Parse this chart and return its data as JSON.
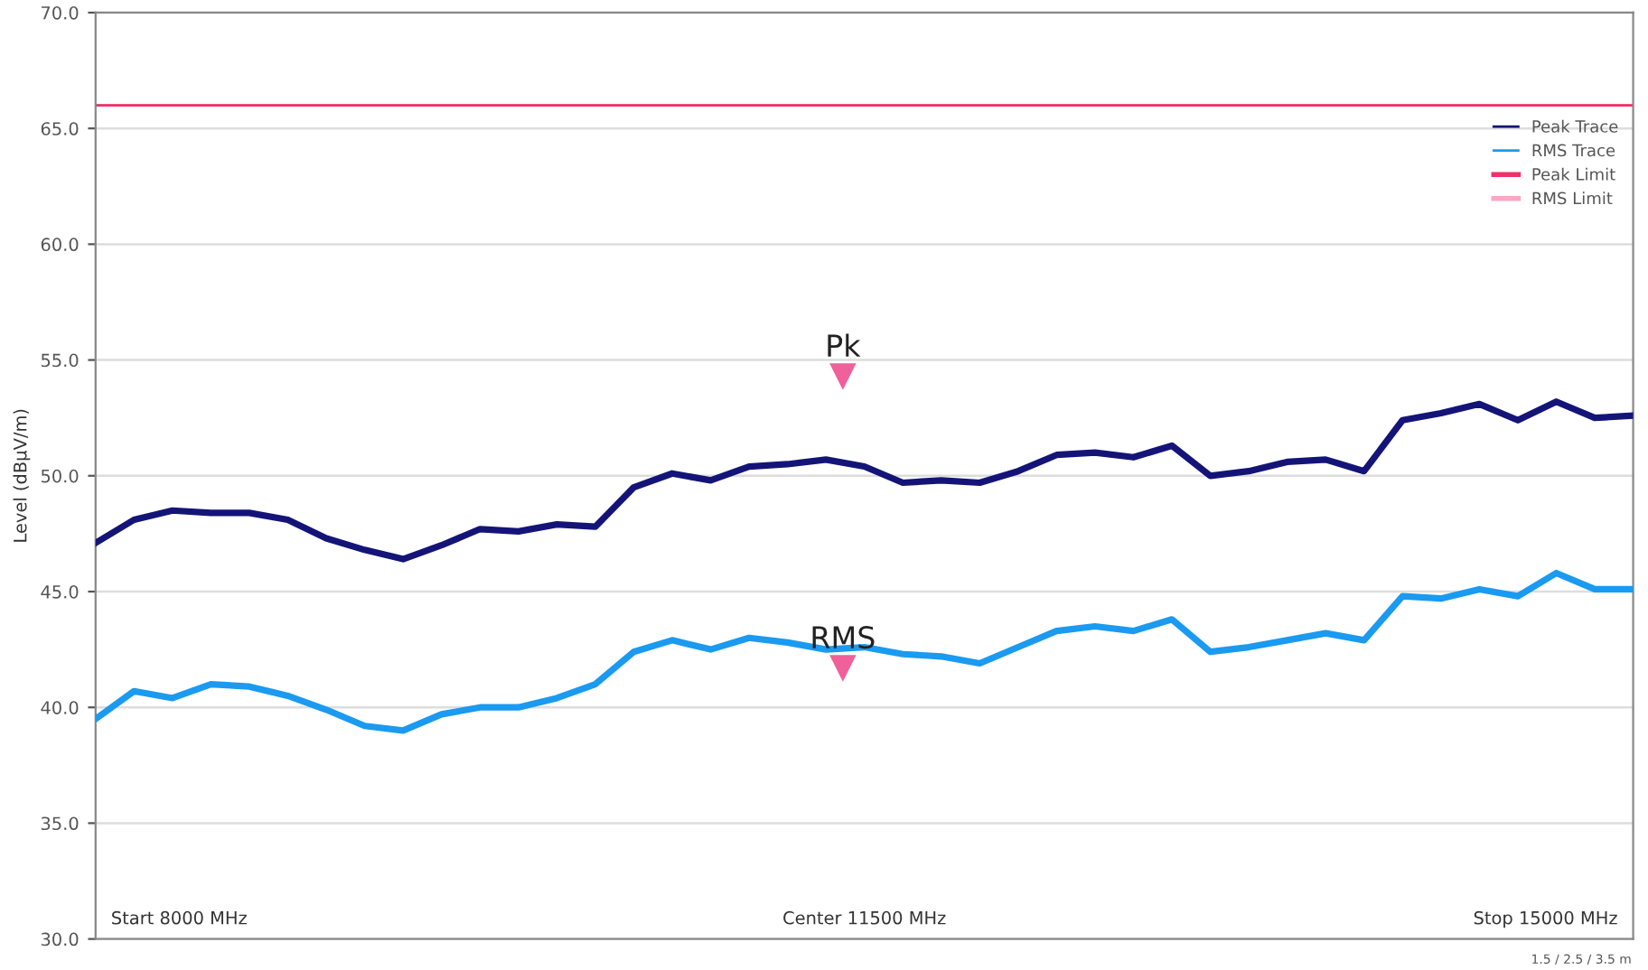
{
  "chart_data": {
    "type": "line",
    "ylabel": "Level (dBµV/m)",
    "categories": [
      null,
      null,
      null,
      null,
      null,
      null,
      null,
      null,
      null,
      null,
      null,
      null,
      null,
      null,
      null,
      null,
      null,
      null,
      null,
      null,
      null,
      null,
      null,
      null,
      null,
      null,
      null,
      null,
      null,
      null,
      null,
      null,
      null,
      null,
      null,
      null,
      null,
      null,
      null,
      null,
      null
    ],
    "ylim": [
      30,
      70
    ],
    "yticks": [
      {
        "value": 30,
        "label": "30.0"
      },
      {
        "value": 35,
        "label": "35.0"
      },
      {
        "value": 40,
        "label": "40.0"
      },
      {
        "value": 45,
        "label": "45.0"
      },
      {
        "value": 50,
        "label": "50.0"
      },
      {
        "value": 55,
        "label": "55.0"
      },
      {
        "value": 60,
        "label": "60.0"
      },
      {
        "value": 65,
        "label": "65.0"
      },
      {
        "value": 70,
        "label": "70.0"
      }
    ],
    "grid": "y",
    "legend": "top right",
    "series": [
      {
        "name": "Peak Trace",
        "color": "#141478",
        "values": [
          47.1,
          48.1,
          48.5,
          48.4,
          48.4,
          48.1,
          47.3,
          46.8,
          46.4,
          47.0,
          47.7,
          47.6,
          47.9,
          47.8,
          49.5,
          50.1,
          49.8,
          50.4,
          50.5,
          50.7,
          50.4,
          49.7,
          49.8,
          49.7,
          50.2,
          50.9,
          51.0,
          50.8,
          51.3,
          50.0,
          50.2,
          50.6,
          50.7,
          50.2,
          52.4,
          52.7,
          53.1,
          52.4,
          53.2,
          52.5,
          52.6
        ]
      },
      {
        "name": "RMS Trace",
        "color": "#1a9af0",
        "values": [
          39.5,
          40.7,
          40.4,
          41.0,
          40.9,
          40.5,
          39.9,
          39.2,
          39.0,
          39.7,
          40.0,
          40.0,
          40.4,
          41.0,
          42.4,
          42.9,
          42.5,
          43.0,
          42.8,
          42.5,
          42.6,
          42.3,
          42.2,
          41.9,
          42.6,
          43.3,
          43.5,
          43.3,
          43.8,
          42.4,
          42.6,
          42.9,
          43.2,
          42.9,
          44.8,
          44.7,
          45.1,
          44.8,
          45.8,
          45.1,
          45.1
        ]
      }
    ],
    "ref_lines": [
      {
        "axis": "y",
        "value": 66,
        "label": "RMS Limit",
        "color": "#f8a8c0"
      },
      {
        "axis": "y",
        "value": 66,
        "label": "Peak Limit",
        "color": "#f0306a"
      }
    ],
    "annotations": [
      "Pk",
      "RMS",
      "Start 8000 MHz",
      "Center 11500 MHz",
      "Stop 15000 MHz",
      "1.5 / 2.5 / 3.5 m"
    ]
  }
}
